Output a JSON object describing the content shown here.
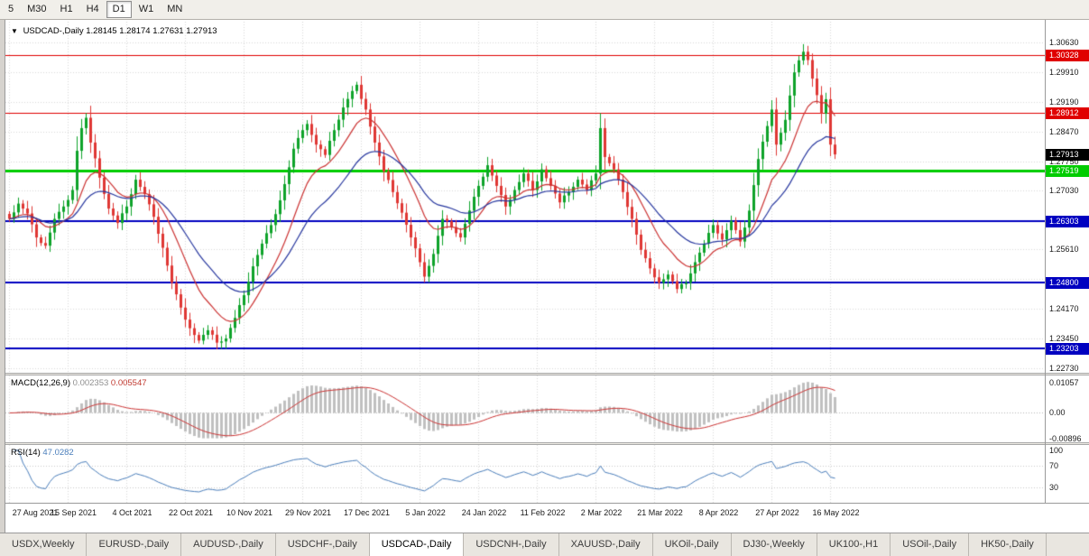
{
  "toolbar": {
    "timeframes": [
      {
        "label": "5",
        "active": false
      },
      {
        "label": "M30",
        "active": false
      },
      {
        "label": "H1",
        "active": false
      },
      {
        "label": "H4",
        "active": false
      },
      {
        "label": "D1",
        "active": true
      },
      {
        "label": "W1",
        "active": false
      },
      {
        "label": "MN",
        "active": false
      }
    ]
  },
  "chart": {
    "header": {
      "collapse_icon": "▼",
      "symbol": "USDCAD-,Daily",
      "open": "1.28145",
      "high": "1.28174",
      "low": "1.27631",
      "close": "1.27913"
    }
  },
  "chart_data": {
    "type": "candlestick",
    "symbol": "USDCAD",
    "timeframe": "Daily",
    "bar_count": 184,
    "ylim": [
      1.2262,
      1.3113
    ],
    "colors": {
      "bull": "#0ea32a",
      "bear": "#df3734",
      "grid": "#d9d9d9"
    },
    "moving_averages": [
      {
        "name": "fast",
        "period": 12,
        "color": "#cc3333"
      },
      {
        "name": "slow",
        "period": 26,
        "color": "#27379f"
      }
    ],
    "y_axis": {
      "labels": [
        {
          "label": "1.30630",
          "value": 1.3063
        },
        {
          "label": "1.29910",
          "value": 1.2991
        },
        {
          "label": "1.29190",
          "value": 1.2919
        },
        {
          "label": "1.28470",
          "value": 1.2847
        },
        {
          "label": "1.27750",
          "value": 1.2775
        },
        {
          "label": "1.27030",
          "value": 1.2703
        },
        {
          "label": "1.25610",
          "value": 1.2561
        },
        {
          "label": "1.24170",
          "value": 1.2417
        },
        {
          "label": "1.23450",
          "value": 1.2345
        },
        {
          "label": "1.22730",
          "value": 1.2273
        }
      ],
      "grid_values": [
        1.3063,
        1.2991,
        1.2919,
        1.2847,
        1.2775,
        1.2703,
        1.2631,
        1.2561,
        1.2489,
        1.2417,
        1.2345,
        1.2273
      ]
    },
    "x_ticks": [
      {
        "bar": 0,
        "label": "27 Aug 2021"
      },
      {
        "bar": 13,
        "label": "15 Sep 2021"
      },
      {
        "bar": 26,
        "label": "4 Oct 2021"
      },
      {
        "bar": 39,
        "label": "22 Oct 2021"
      },
      {
        "bar": 52,
        "label": "10 Nov 2021"
      },
      {
        "bar": 65,
        "label": "29 Nov 2021"
      },
      {
        "bar": 78,
        "label": "17 Dec 2021"
      },
      {
        "bar": 91,
        "label": "5 Jan 2022"
      },
      {
        "bar": 104,
        "label": "24 Jan 2022"
      },
      {
        "bar": 117,
        "label": "11 Feb 2022"
      },
      {
        "bar": 130,
        "label": "2 Mar 2022"
      },
      {
        "bar": 143,
        "label": "21 Mar 2022"
      },
      {
        "bar": 156,
        "label": "8 Apr 2022"
      },
      {
        "bar": 169,
        "label": "27 Apr 2022"
      },
      {
        "bar": 182,
        "label": "16 May 2022"
      }
    ],
    "levels": [
      {
        "value": 1.30328,
        "label": "1.30328",
        "color": "#e00000",
        "width": 1
      },
      {
        "value": 1.28912,
        "label": "1.28912",
        "color": "#e00000",
        "width": 1
      },
      {
        "value": 1.27519,
        "label": "1.27519",
        "color": "#00cc00",
        "width": 3
      },
      {
        "value": 1.26303,
        "label": "1.26303",
        "color": "#0000c0",
        "width": 2
      },
      {
        "value": 1.248,
        "label": "1.24800",
        "color": "#0000c0",
        "width": 2
      },
      {
        "value": 1.23203,
        "label": "1.23203",
        "color": "#0000c0",
        "width": 2
      }
    ],
    "current_price": {
      "value": 1.27913,
      "label": "1.27913",
      "badge_color": "#000000"
    },
    "price_anchors": [
      [
        0,
        1.2635
      ],
      [
        2,
        1.2672
      ],
      [
        4,
        1.2648
      ],
      [
        6,
        1.259
      ],
      [
        8,
        1.257
      ],
      [
        10,
        1.2635
      ],
      [
        12,
        1.2665
      ],
      [
        14,
        1.2705
      ],
      [
        15,
        1.28
      ],
      [
        16,
        1.2855
      ],
      [
        17,
        1.288
      ],
      [
        18,
        1.282
      ],
      [
        20,
        1.2735
      ],
      [
        22,
        1.266
      ],
      [
        24,
        1.2625
      ],
      [
        26,
        1.2665
      ],
      [
        28,
        1.273
      ],
      [
        30,
        1.2695
      ],
      [
        32,
        1.264
      ],
      [
        34,
        1.2565
      ],
      [
        36,
        1.248
      ],
      [
        38,
        1.242
      ],
      [
        40,
        1.237
      ],
      [
        42,
        1.234
      ],
      [
        44,
        1.2365
      ],
      [
        46,
        1.2335
      ],
      [
        48,
        1.2345
      ],
      [
        50,
        1.2395
      ],
      [
        52,
        1.245
      ],
      [
        54,
        1.252
      ],
      [
        56,
        1.2575
      ],
      [
        58,
        1.262
      ],
      [
        60,
        1.268
      ],
      [
        62,
        1.276
      ],
      [
        63,
        1.2805
      ],
      [
        65,
        1.285
      ],
      [
        66,
        1.2865
      ],
      [
        68,
        1.2815
      ],
      [
        70,
        1.279
      ],
      [
        72,
        1.285
      ],
      [
        74,
        1.2905
      ],
      [
        76,
        1.2945
      ],
      [
        77,
        1.296
      ],
      [
        79,
        1.29
      ],
      [
        81,
        1.282
      ],
      [
        83,
        1.275
      ],
      [
        85,
        1.27
      ],
      [
        87,
        1.265
      ],
      [
        89,
        1.259
      ],
      [
        91,
        1.253
      ],
      [
        92,
        1.2495
      ],
      [
        94,
        1.255
      ],
      [
        96,
        1.2635
      ],
      [
        98,
        1.2615
      ],
      [
        100,
        1.259
      ],
      [
        102,
        1.2655
      ],
      [
        104,
        1.2715
      ],
      [
        106,
        1.2765
      ],
      [
        108,
        1.2715
      ],
      [
        110,
        1.2665
      ],
      [
        112,
        1.2705
      ],
      [
        114,
        1.2745
      ],
      [
        116,
        1.2705
      ],
      [
        118,
        1.2755
      ],
      [
        120,
        1.2715
      ],
      [
        122,
        1.2675
      ],
      [
        124,
        1.27
      ],
      [
        126,
        1.273
      ],
      [
        128,
        1.2705
      ],
      [
        130,
        1.2745
      ],
      [
        131,
        1.2855
      ],
      [
        132,
        1.2785
      ],
      [
        134,
        1.2755
      ],
      [
        136,
        1.27
      ],
      [
        138,
        1.2635
      ],
      [
        140,
        1.256
      ],
      [
        142,
        1.2515
      ],
      [
        144,
        1.248
      ],
      [
        146,
        1.25
      ],
      [
        148,
        1.2465
      ],
      [
        150,
        1.248
      ],
      [
        152,
        1.253
      ],
      [
        154,
        1.2575
      ],
      [
        156,
        1.262
      ],
      [
        158,
        1.2585
      ],
      [
        160,
        1.263
      ],
      [
        162,
        1.258
      ],
      [
        164,
        1.2655
      ],
      [
        166,
        1.278
      ],
      [
        168,
        1.286
      ],
      [
        169,
        1.29
      ],
      [
        170,
        1.2815
      ],
      [
        172,
        1.2875
      ],
      [
        174,
        1.299
      ],
      [
        176,
        1.304
      ],
      [
        177,
        1.302
      ],
      [
        178,
        1.2975
      ],
      [
        179,
        1.2935
      ],
      [
        180,
        1.289
      ],
      [
        181,
        1.2925
      ],
      [
        182,
        1.2815
      ],
      [
        183,
        1.27913
      ]
    ]
  },
  "macd": {
    "label": "MACD(12,26,9)",
    "value": "0.002353",
    "signal": "0.005547",
    "fast": 12,
    "slow": 26,
    "signal_period": 9,
    "ylim": [
      -0.0102,
      0.013
    ],
    "scale": [
      {
        "label": "0.01057",
        "value": 0.01057
      },
      {
        "label": "0.00",
        "value": 0
      },
      {
        "label": "-0.00896",
        "value": -0.00896
      }
    ],
    "colors": {
      "histogram": "#c0c0c0",
      "signal": "#cc3333"
    }
  },
  "rsi": {
    "label": "RSI(14)",
    "value": "47.0282",
    "period": 14,
    "ylim": [
      0,
      110
    ],
    "levels": [
      70,
      30
    ],
    "scale": [
      {
        "label": "100",
        "value": 100
      },
      {
        "label": "70",
        "value": 70
      },
      {
        "label": "30",
        "value": 30
      }
    ],
    "color": "#4a7ebb"
  },
  "tabs": {
    "items": [
      "USDX,Weekly",
      "EURUSD-,Daily",
      "AUDUSD-,Daily",
      "USDCHF-,Daily",
      "USDCAD-,Daily",
      "USDCNH-,Daily",
      "XAUUSD-,Daily",
      "UKOil-,Daily",
      "DJ30-,Weekly",
      "UK100-,H1",
      "USOil-,Daily",
      "HK50-,Daily"
    ],
    "active_index": 4
  }
}
